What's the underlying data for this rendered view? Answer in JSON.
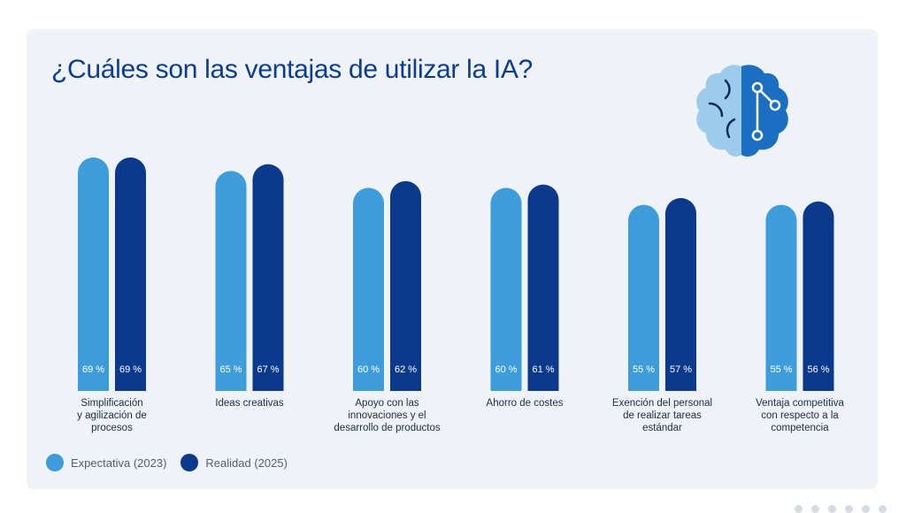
{
  "title": "¿Cuáles son las ventajas de utilizar la IA?",
  "colors": {
    "expectation": "#3d9ddb",
    "reality": "#0b3a8d",
    "title": "#0a3d91",
    "background": "#eff3f8"
  },
  "icons": {
    "illustration": "brain-circuit-icon"
  },
  "chart_data": {
    "type": "bar",
    "title": "¿Cuáles son las ventajas de utilizar la IA?",
    "xlabel": "",
    "ylabel": "",
    "ylim": [
      0,
      70
    ],
    "grid": false,
    "legend_position": "bottom-left",
    "unit_suffix": " %",
    "categories": [
      [
        "Simplificación",
        "y agilización de",
        "procesos"
      ],
      [
        "Ideas creativas"
      ],
      [
        "Apoyo con las",
        "innovaciones y el",
        "desarrollo de productos"
      ],
      [
        "Ahorro de costes"
      ],
      [
        "Exención del personal",
        "de realizar tareas",
        "estándar"
      ],
      [
        "Ventaja competitiva",
        "con respecto a la",
        "competencia"
      ]
    ],
    "series": [
      {
        "name": "Expectativa (2023)",
        "values": [
          69,
          65,
          60,
          60,
          55,
          55
        ]
      },
      {
        "name": "Realidad (2025)",
        "values": [
          69,
          67,
          62,
          61,
          57,
          56
        ]
      }
    ]
  }
}
